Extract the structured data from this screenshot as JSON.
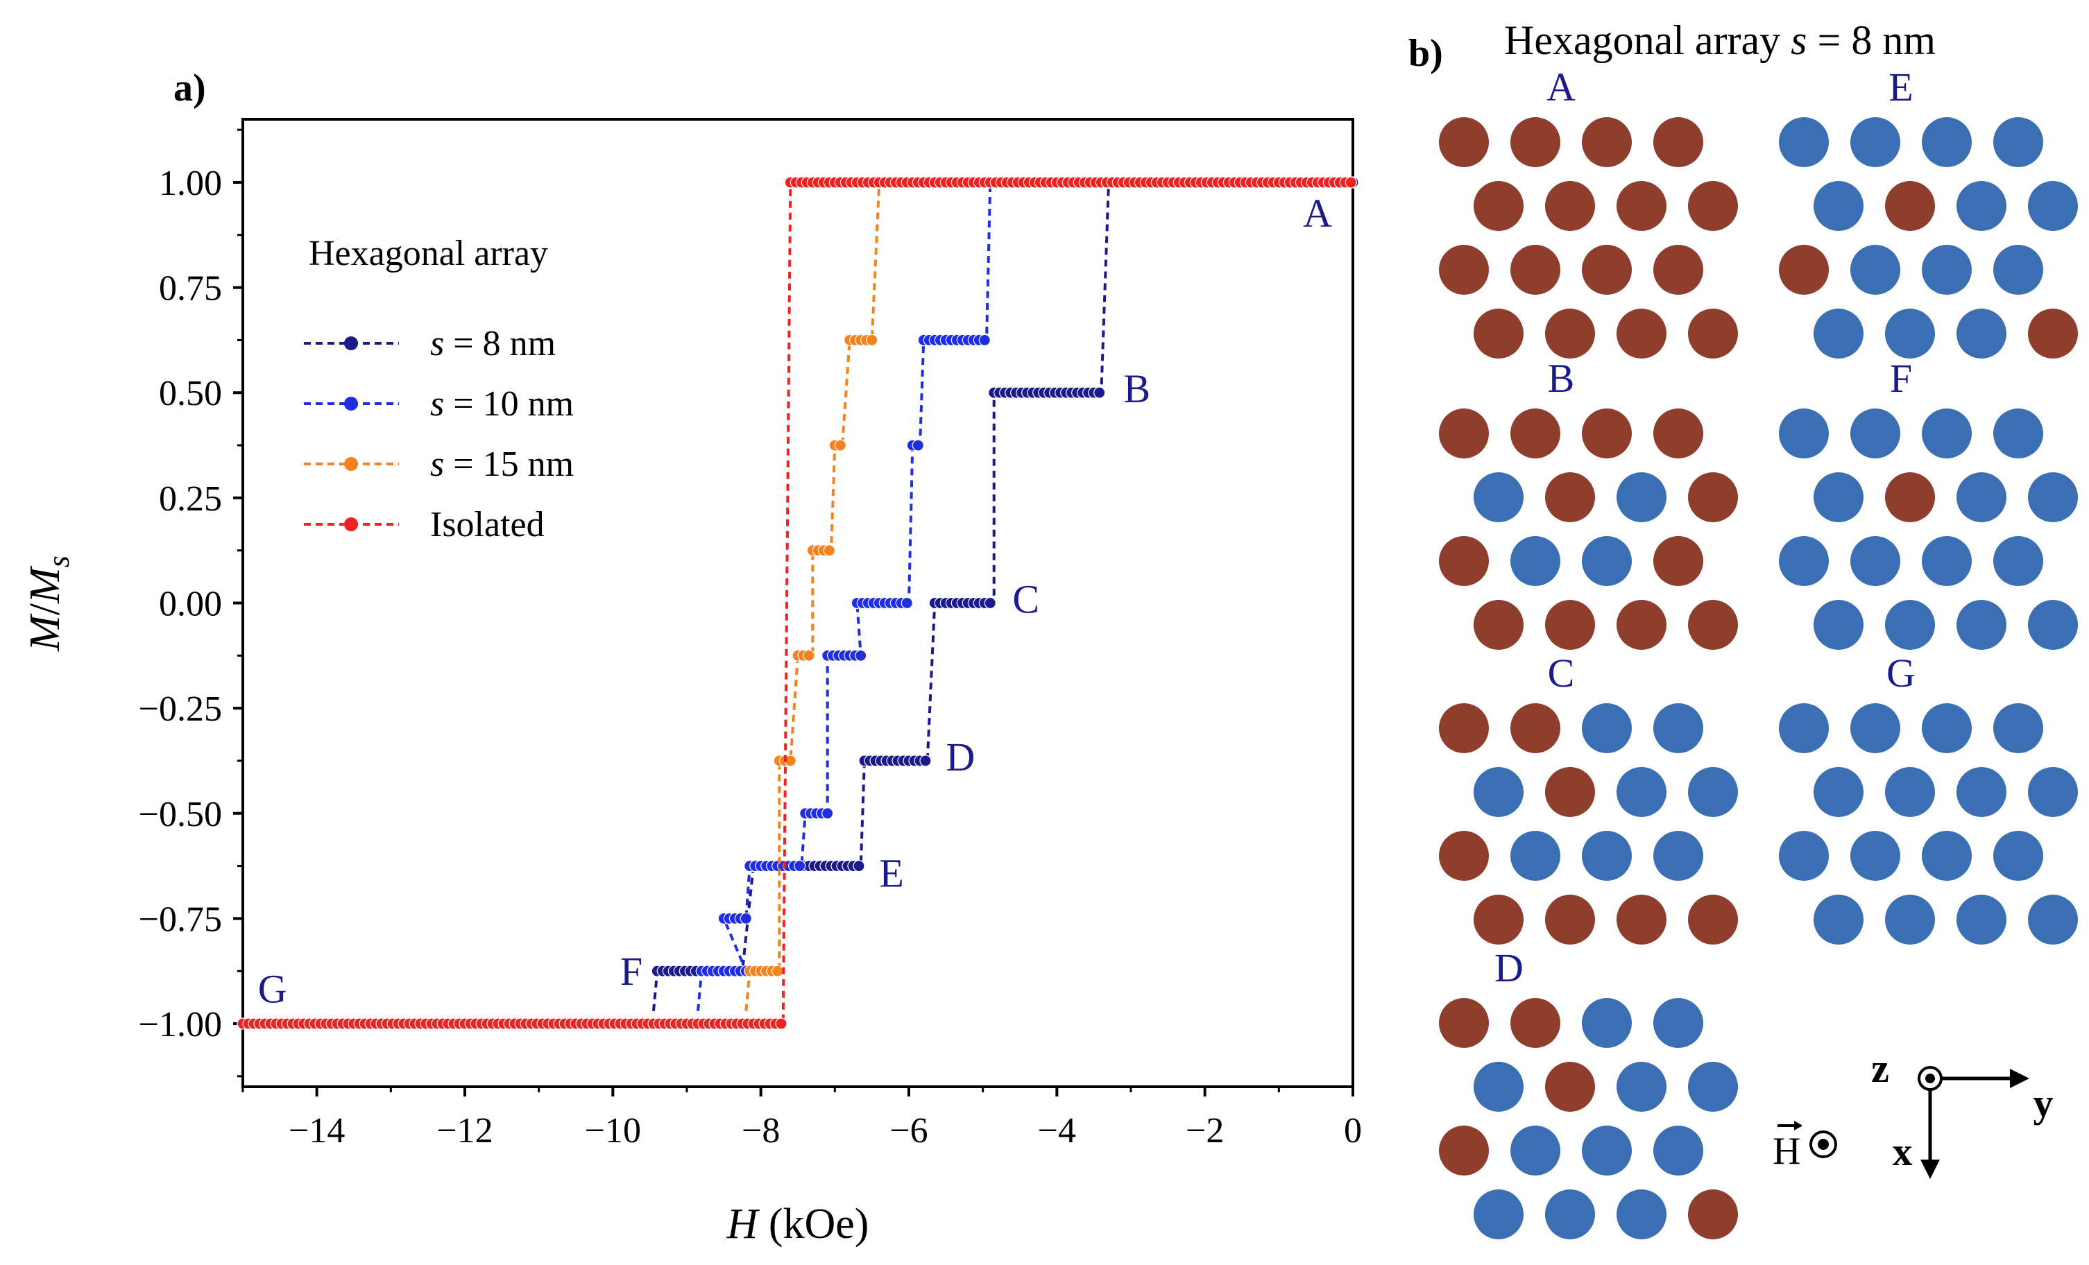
{
  "figure": {
    "panel_a_label": "a)",
    "panel_b_label": "b)",
    "panel_b_title": "Hexagonal array s = 8 nm",
    "panel_b_title_prefix": "Hexagonal array ",
    "panel_b_title_s": "s",
    "panel_b_title_suffix": " = 8 nm"
  },
  "chart_data": {
    "type": "line",
    "title": "",
    "xlabel": "H (kOe)",
    "ylabel": "M/Ms",
    "xlim": [
      -15,
      0
    ],
    "ylim": [
      -1.15,
      1.15
    ],
    "xticks": [
      -14,
      -12,
      -10,
      -8,
      -6,
      -4,
      -2,
      0
    ],
    "xtick_labels": [
      "−14",
      "−12",
      "−10",
      "−8",
      "−6",
      "−4",
      "−2",
      "0"
    ],
    "yticks": [
      1.0,
      0.75,
      0.5,
      0.25,
      0.0,
      -0.25,
      -0.5,
      -0.75,
      -1.0
    ],
    "ytick_labels": [
      "1.00",
      "0.75",
      "0.50",
      "0.25",
      "0.00",
      "−0.25",
      "−0.50",
      "−0.75",
      "−1.00"
    ],
    "legend_title": "Hexagonal array",
    "legend_position": "upper-left",
    "series": [
      {
        "name": "s = 8 nm",
        "color": "#1a1a8c",
        "plateaus": [
          [
            -9.4,
            -8.25,
            -0.875
          ],
          [
            -8.1,
            -6.65,
            -0.625
          ],
          [
            -6.6,
            -5.75,
            -0.375
          ],
          [
            -5.65,
            -4.85,
            0.0
          ],
          [
            -4.85,
            -3.4,
            0.5
          ],
          [
            -3.3,
            0.0,
            1.0
          ]
        ],
        "start": [
          -9.45,
          -0.97
        ]
      },
      {
        "name": "s = 10 nm",
        "color": "#1f2fe0",
        "plateaus": [
          [
            -8.8,
            -8.2,
            -0.875
          ],
          [
            -8.5,
            -8.2,
            -0.75
          ],
          [
            -8.15,
            -7.45,
            -0.625
          ],
          [
            -7.4,
            -7.1,
            -0.5
          ],
          [
            -7.1,
            -6.65,
            -0.125
          ],
          [
            -6.7,
            -6.0,
            0.0
          ],
          [
            -5.95,
            -5.85,
            0.375
          ],
          [
            -5.8,
            -4.95,
            0.625
          ],
          [
            -4.9,
            0.0,
            1.0
          ]
        ],
        "start": [
          -8.85,
          -0.97
        ]
      },
      {
        "name": "s = 15 nm",
        "color": "#f5821f",
        "plateaus": [
          [
            -8.15,
            -7.75,
            -0.875
          ],
          [
            -7.75,
            -7.6,
            -0.375
          ],
          [
            -7.5,
            -7.3,
            -0.125
          ],
          [
            -7.3,
            -7.05,
            0.125
          ],
          [
            -7.0,
            -6.9,
            0.375
          ],
          [
            -6.8,
            -6.5,
            0.625
          ],
          [
            -6.4,
            0.0,
            1.0
          ]
        ],
        "start": [
          -8.2,
          -0.97
        ]
      },
      {
        "name": "Isolated",
        "color": "#ee2222",
        "plateaus": [
          [
            -15.0,
            -7.7,
            -1.0
          ],
          [
            -7.6,
            0.0,
            1.0
          ]
        ],
        "start": [
          -15.0,
          -1.0
        ]
      }
    ],
    "annotations": [
      {
        "text": "A",
        "x": 0.0,
        "y": 0.96,
        "anchor": "end",
        "dx": -30,
        "dy": 40
      },
      {
        "text": "B",
        "x": -3.1,
        "y": 0.5,
        "anchor": "start",
        "dx": 0,
        "dy": 14
      },
      {
        "text": "C",
        "x": -4.6,
        "y": 0.0,
        "anchor": "start",
        "dx": 0,
        "dy": 14
      },
      {
        "text": "D",
        "x": -5.5,
        "y": -0.375,
        "anchor": "start",
        "dx": 0,
        "dy": 14
      },
      {
        "text": "E",
        "x": -6.4,
        "y": -0.625,
        "anchor": "start",
        "dx": 0,
        "dy": 30
      },
      {
        "text": "F",
        "x": -9.75,
        "y": -0.875,
        "anchor": "middle",
        "dx": 0,
        "dy": 20
      },
      {
        "text": "G",
        "x": -14.6,
        "y": -0.95,
        "anchor": "middle",
        "dx": 0,
        "dy": 0
      }
    ]
  },
  "spin_configs": {
    "colors": {
      "red": "#8f3d2c",
      "blue": "#3a6fb3"
    },
    "legend": {
      "field_label": "H",
      "z_label": "z",
      "y_label": "y",
      "x_label": "x"
    },
    "panels": [
      {
        "label": "A",
        "states": [
          "RRRR",
          "RRRR",
          "RRRR",
          "RRRR"
        ]
      },
      {
        "label": "E",
        "states": [
          "BBBB",
          "BRBB",
          "RBBB",
          "BBBR"
        ]
      },
      {
        "label": "B",
        "states": [
          "RRRR",
          "BRBR",
          "RBBR",
          "RRRR"
        ]
      },
      {
        "label": "F",
        "states": [
          "BBBB",
          "BRBB",
          "BBBB",
          "BBBB"
        ]
      },
      {
        "label": "C",
        "states": [
          "RRBB",
          "BRBB",
          "RBBB",
          "RRRR"
        ]
      },
      {
        "label": "G",
        "states": [
          "BBBB",
          "BBBB",
          "BBBB",
          "BBBB"
        ]
      },
      {
        "label": "D",
        "states": [
          "RRBB",
          "BRBB",
          "RBBB",
          "BBBR"
        ]
      }
    ]
  }
}
